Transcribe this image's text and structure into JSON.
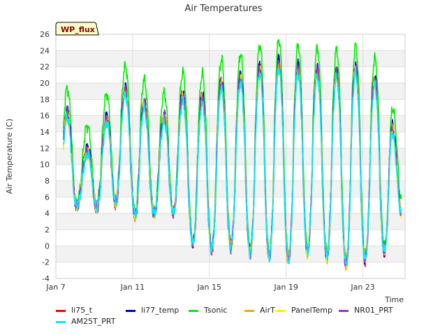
{
  "chart_data": {
    "type": "line",
    "title": "Air Temperatures",
    "xlabel": "Time",
    "ylabel": "Air Temperature (C)",
    "badge": "WP_flux",
    "ylim": [
      -4,
      26
    ],
    "xlim": [
      7,
      25.2
    ],
    "yticks": [
      -4,
      -2,
      0,
      2,
      4,
      6,
      8,
      10,
      12,
      14,
      16,
      18,
      20,
      22,
      24,
      26
    ],
    "xticks": [
      {
        "value": 7,
        "label": "Jan 7"
      },
      {
        "value": 11,
        "label": "Jan 11"
      },
      {
        "value": 15,
        "label": "Jan 15"
      },
      {
        "value": 19,
        "label": "Jan 19"
      },
      {
        "value": 23,
        "label": "Jan 23"
      }
    ],
    "grid": true,
    "legend_position": "bottom",
    "series": [
      {
        "name": "li75_t",
        "color": "#ff0000",
        "offset": 0.0
      },
      {
        "name": "li77_temp",
        "color": "#0000cc",
        "offset": 0.2
      },
      {
        "name": "Tsonic",
        "color": "#00ee00",
        "offset": 1.6
      },
      {
        "name": "AirT",
        "color": "#ffa500",
        "offset": -0.3
      },
      {
        "name": "PanelTemp",
        "color": "#ffee00",
        "offset": -0.5
      },
      {
        "name": "NR01_PRT",
        "color": "#9932cc",
        "offset": -0.2
      },
      {
        "name": "AM25T_PRT",
        "color": "#00eeff",
        "offset": -0.8
      }
    ],
    "daily_cycles": [
      {
        "day": 7.3,
        "min": 2.5,
        "max": 19.0
      },
      {
        "day": 8.3,
        "min": 5.5,
        "max": 11.0
      },
      {
        "day": 9.3,
        "min": 4.5,
        "max": 14.0
      },
      {
        "day": 10.3,
        "min": 5.5,
        "max": 19.5
      },
      {
        "day": 11.3,
        "min": 3.5,
        "max": 19.0
      },
      {
        "day": 12.3,
        "min": 4.0,
        "max": 14.5
      },
      {
        "day": 13.3,
        "min": 4.0,
        "max": 19.0
      },
      {
        "day": 14.3,
        "min": -0.5,
        "max": 17.5
      },
      {
        "day": 15.3,
        "min": -0.5,
        "max": 20.0
      },
      {
        "day": 16.3,
        "min": 0.0,
        "max": 20.5
      },
      {
        "day": 17.3,
        "min": -1.0,
        "max": 21.5
      },
      {
        "day": 18.3,
        "min": -1.5,
        "max": 23.0
      },
      {
        "day": 19.3,
        "min": -1.8,
        "max": 22.0
      },
      {
        "day": 20.3,
        "min": -0.5,
        "max": 22.0
      },
      {
        "day": 21.3,
        "min": -1.5,
        "max": 21.0
      },
      {
        "day": 22.3,
        "min": -2.5,
        "max": 22.5
      },
      {
        "day": 23.3,
        "min": -1.5,
        "max": 21.0
      },
      {
        "day": 24.3,
        "min": -0.5,
        "max": 19.5
      },
      {
        "day": 24.95,
        "min": 3.5,
        "max": 8.0
      }
    ]
  }
}
